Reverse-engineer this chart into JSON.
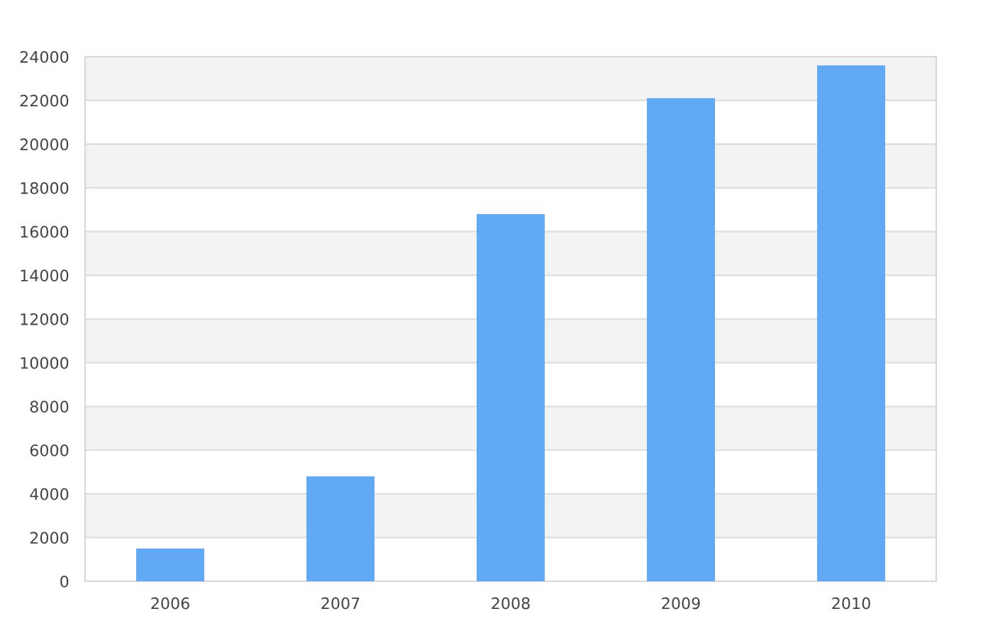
{
  "chart_data": {
    "type": "bar",
    "categories": [
      "2006",
      "2007",
      "2008",
      "2009",
      "2010"
    ],
    "values": [
      1500,
      4800,
      16800,
      22100,
      23600
    ],
    "color": "#61a8f5",
    "ylim": [
      0,
      24000
    ],
    "yticks": [
      0,
      2000,
      4000,
      6000,
      8000,
      10000,
      12000,
      14000,
      16000,
      18000,
      20000,
      22000,
      24000
    ],
    "grid": "y"
  }
}
